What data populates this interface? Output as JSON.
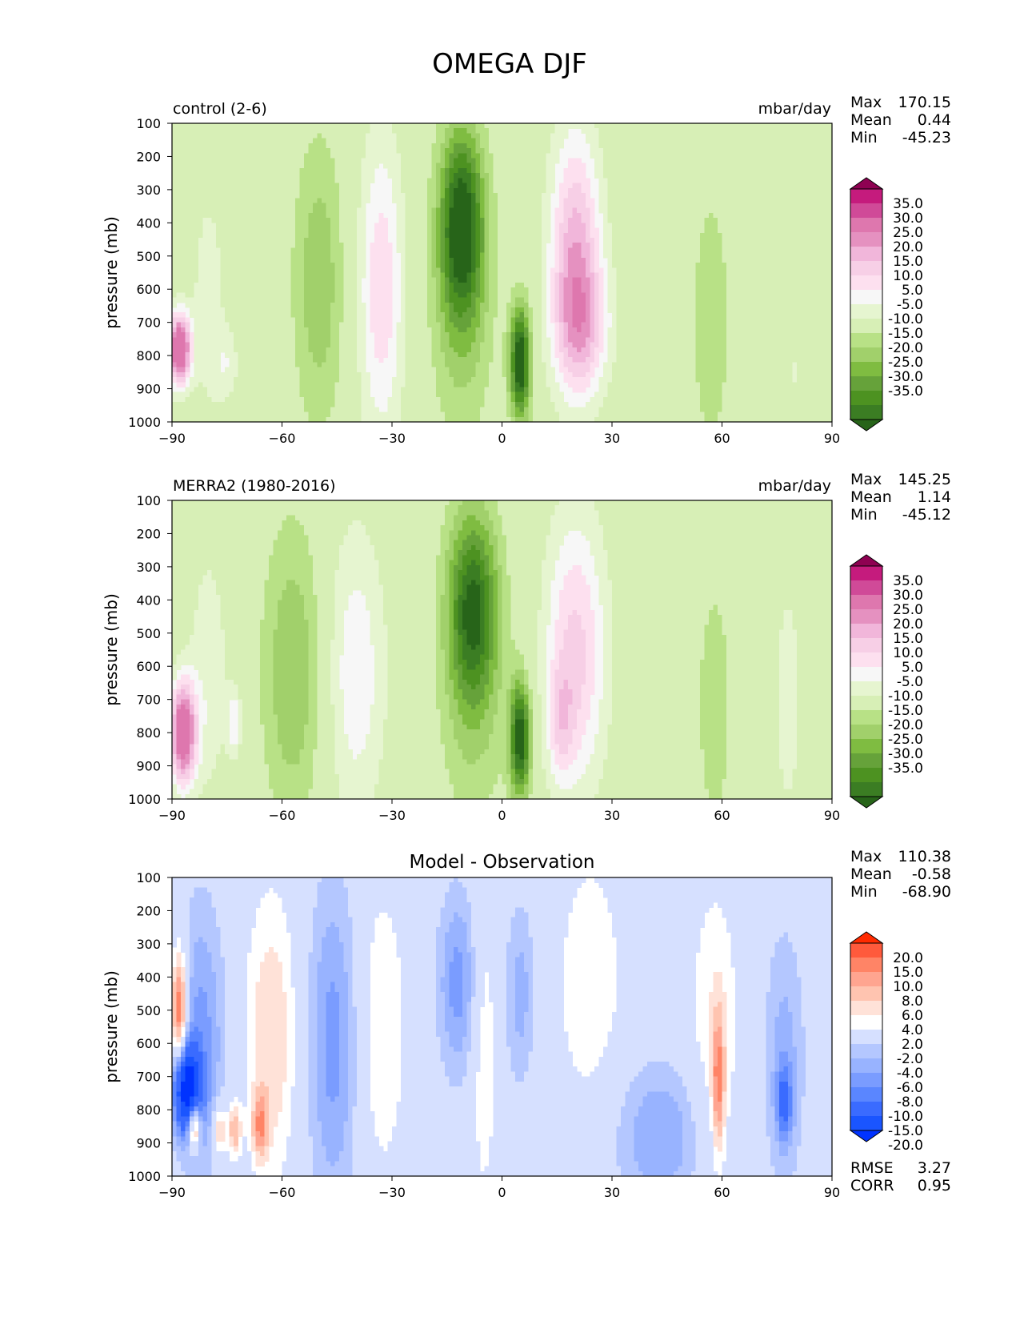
{
  "title": "OMEGA DJF",
  "colors": {
    "background": "#f7f7f7",
    "pink_green": [
      "#276419",
      "#3b7d23",
      "#4d9221",
      "#66a23a",
      "#7fbc41",
      "#a1d06b",
      "#b8e186",
      "#d7efb6",
      "#e6f5d0",
      "#f7f7f7",
      "#fde0ef",
      "#f7cfe6",
      "#f1b6da",
      "#e591c0",
      "#de77ae",
      "#d04a98",
      "#c51b7d",
      "#8e0152"
    ],
    "blue_red": [
      "#0033ff",
      "#1a55ff",
      "#3a6bff",
      "#5a86ff",
      "#7a9cff",
      "#98b3ff",
      "#b4c7ff",
      "#d6e0ff",
      "#ffffff",
      "#ffe2d8",
      "#ffc4b0",
      "#ffa590",
      "#ff8466",
      "#ff5a3c",
      "#ff2a00"
    ]
  },
  "chart_data": [
    {
      "type": "contour",
      "panel": "control",
      "left_title": "control (2-6)",
      "units": "mbar/day",
      "ylabel": "pressure (mb)",
      "xlim": [
        -90,
        90
      ],
      "ylim": [
        1000,
        100
      ],
      "xticks": [
        "−90",
        "−60",
        "−30",
        "0",
        "30",
        "60",
        "90"
      ],
      "yticks": [
        "100",
        "200",
        "300",
        "400",
        "500",
        "600",
        "700",
        "800",
        "900",
        "1000"
      ],
      "stats": [
        {
          "label": "Max",
          "value": "170.15"
        },
        {
          "label": "Mean",
          "value": "0.44"
        },
        {
          "label": "Min",
          "value": "-45.23"
        }
      ],
      "colorbar_labels": [
        "35.0",
        "30.0",
        "25.0",
        "20.0",
        "15.0",
        "10.0",
        "5.0",
        "-5.0",
        "-10.0",
        "-15.0",
        "-20.0",
        "-25.0",
        "-30.0",
        "-35.0"
      ],
      "features": [
        {
          "lat": -88,
          "p": 780,
          "wlat": 2.2,
          "wp": 75,
          "amp": 48
        },
        {
          "lat": -80,
          "p": 630,
          "wlat": 3.5,
          "wp": 260,
          "amp": 8
        },
        {
          "lat": -75,
          "p": 830,
          "wlat": 2.5,
          "wp": 80,
          "amp": 8
        },
        {
          "lat": -50,
          "p": 580,
          "wlat": 5,
          "wp": 310,
          "amp": -14
        },
        {
          "lat": -33,
          "p": 600,
          "wlat": 4.5,
          "wp": 330,
          "amp": 19
        },
        {
          "lat": -11,
          "p": 400,
          "wlat": 4,
          "wp": 190,
          "amp": -34
        },
        {
          "lat": -11,
          "p": 600,
          "wlat": 6,
          "wp": 320,
          "amp": -14
        },
        {
          "lat": 5,
          "p": 820,
          "wlat": 2,
          "wp": 120,
          "amp": -42
        },
        {
          "lat": 20,
          "p": 500,
          "wlat": 5,
          "wp": 270,
          "amp": 28
        },
        {
          "lat": 22,
          "p": 720,
          "wlat": 5.5,
          "wp": 140,
          "amp": 16
        },
        {
          "lat": 57,
          "p": 700,
          "wlat": 4,
          "wp": 300,
          "amp": -9
        },
        {
          "lat": 80,
          "p": 850,
          "wlat": 1,
          "wp": 60,
          "amp": 6
        }
      ]
    },
    {
      "type": "contour",
      "panel": "observation",
      "left_title": "MERRA2 (1980-2016)",
      "units": "mbar/day",
      "ylabel": "pressure (mb)",
      "xlim": [
        -90,
        90
      ],
      "ylim": [
        1000,
        100
      ],
      "xticks": [
        "−90",
        "−60",
        "−30",
        "0",
        "30",
        "60",
        "90"
      ],
      "yticks": [
        "100",
        "200",
        "300",
        "400",
        "500",
        "600",
        "700",
        "800",
        "900",
        "1000"
      ],
      "stats": [
        {
          "label": "Max",
          "value": "145.25"
        },
        {
          "label": "Mean",
          "value": "1.14"
        },
        {
          "label": "Min",
          "value": "-45.12"
        }
      ],
      "colorbar_labels": [
        "35.0",
        "30.0",
        "25.0",
        "20.0",
        "15.0",
        "10.0",
        "5.0",
        "-5.0",
        "-10.0",
        "-15.0",
        "-20.0",
        "-25.0",
        "-30.0",
        "-35.0"
      ],
      "features": [
        {
          "lat": -87,
          "p": 800,
          "wlat": 2.5,
          "wp": 110,
          "amp": 45
        },
        {
          "lat": -80,
          "p": 620,
          "wlat": 4,
          "wp": 280,
          "amp": 9
        },
        {
          "lat": -73,
          "p": 770,
          "wlat": 1.5,
          "wp": 70,
          "amp": 14
        },
        {
          "lat": -57,
          "p": 620,
          "wlat": 6,
          "wp": 320,
          "amp": -15
        },
        {
          "lat": -40,
          "p": 620,
          "wlat": 6,
          "wp": 320,
          "amp": 14
        },
        {
          "lat": -8,
          "p": 420,
          "wlat": 4.5,
          "wp": 190,
          "amp": -28
        },
        {
          "lat": -8,
          "p": 600,
          "wlat": 6.5,
          "wp": 330,
          "amp": -13
        },
        {
          "lat": 5,
          "p": 820,
          "wlat": 2,
          "wp": 120,
          "amp": -40
        },
        {
          "lat": 20,
          "p": 560,
          "wlat": 6,
          "wp": 300,
          "amp": 22
        },
        {
          "lat": 16,
          "p": 770,
          "wlat": 2.5,
          "wp": 120,
          "amp": 12
        },
        {
          "lat": 58,
          "p": 720,
          "wlat": 3.5,
          "wp": 280,
          "amp": -9
        },
        {
          "lat": 78,
          "p": 700,
          "wlat": 3,
          "wp": 280,
          "amp": 8
        }
      ]
    },
    {
      "type": "contour",
      "panel": "difference",
      "center_title": "Model - Observation",
      "ylabel": "pressure (mb)",
      "xlim": [
        -90,
        90
      ],
      "ylim": [
        1000,
        100
      ],
      "xticks": [
        "−90",
        "−60",
        "−30",
        "0",
        "30",
        "60",
        "90"
      ],
      "yticks": [
        "100",
        "200",
        "300",
        "400",
        "500",
        "600",
        "700",
        "800",
        "900",
        "1000"
      ],
      "stats": [
        {
          "label": "Max",
          "value": "110.38"
        },
        {
          "label": "Mean",
          "value": "-0.58"
        },
        {
          "label": "Min",
          "value": "-68.90"
        }
      ],
      "bottom_stats": [
        {
          "label": "RMSE",
          "value": "3.27"
        },
        {
          "label": "CORR",
          "value": "0.95"
        }
      ],
      "colorbar_labels": [
        "20.0",
        "15.0",
        "10.0",
        "8.0",
        "6.0",
        "4.0",
        "2.0",
        "-2.0",
        "-4.0",
        "-6.0",
        "-8.0",
        "-10.0",
        "-15.0",
        "-20.0"
      ],
      "features": [
        {
          "lat": -88,
          "p": 500,
          "wlat": 1.5,
          "wp": 130,
          "amp": 14
        },
        {
          "lat": -86,
          "p": 740,
          "wlat": 2.5,
          "wp": 90,
          "amp": -22
        },
        {
          "lat": -84,
          "p": 850,
          "wlat": 1.2,
          "wp": 50,
          "amp": 16
        },
        {
          "lat": -82,
          "p": 600,
          "wlat": 4.5,
          "wp": 300,
          "amp": -7
        },
        {
          "lat": -77,
          "p": 860,
          "wlat": 1.3,
          "wp": 60,
          "amp": 8
        },
        {
          "lat": -73,
          "p": 860,
          "wlat": 1.3,
          "wp": 60,
          "amp": 8
        },
        {
          "lat": -66,
          "p": 850,
          "wlat": 1.5,
          "wp": 70,
          "amp": 8
        },
        {
          "lat": -63,
          "p": 580,
          "wlat": 5,
          "wp": 300,
          "amp": 6
        },
        {
          "lat": -46,
          "p": 600,
          "wlat": 5,
          "wp": 350,
          "amp": -7
        },
        {
          "lat": -33,
          "p": 560,
          "wlat": 5,
          "wp": 320,
          "amp": 4
        },
        {
          "lat": -12,
          "p": 420,
          "wlat": 4,
          "wp": 200,
          "amp": -7
        },
        {
          "lat": -5,
          "p": 600,
          "wlat": 2.5,
          "wp": 330,
          "amp": 4
        },
        {
          "lat": 5,
          "p": 450,
          "wlat": 3,
          "wp": 200,
          "amp": -5
        },
        {
          "lat": 24,
          "p": 420,
          "wlat": 7,
          "wp": 300,
          "amp": 3.5
        },
        {
          "lat": 43,
          "p": 880,
          "wlat": 9,
          "wp": 160,
          "amp": -6
        },
        {
          "lat": 58,
          "p": 560,
          "wlat": 5,
          "wp": 320,
          "amp": 4
        },
        {
          "lat": 59,
          "p": 720,
          "wlat": 1.2,
          "wp": 150,
          "amp": 9
        },
        {
          "lat": 77,
          "p": 650,
          "wlat": 4,
          "wp": 280,
          "amp": -5
        },
        {
          "lat": 77,
          "p": 780,
          "wlat": 1.5,
          "wp": 80,
          "amp": -8
        }
      ]
    }
  ]
}
